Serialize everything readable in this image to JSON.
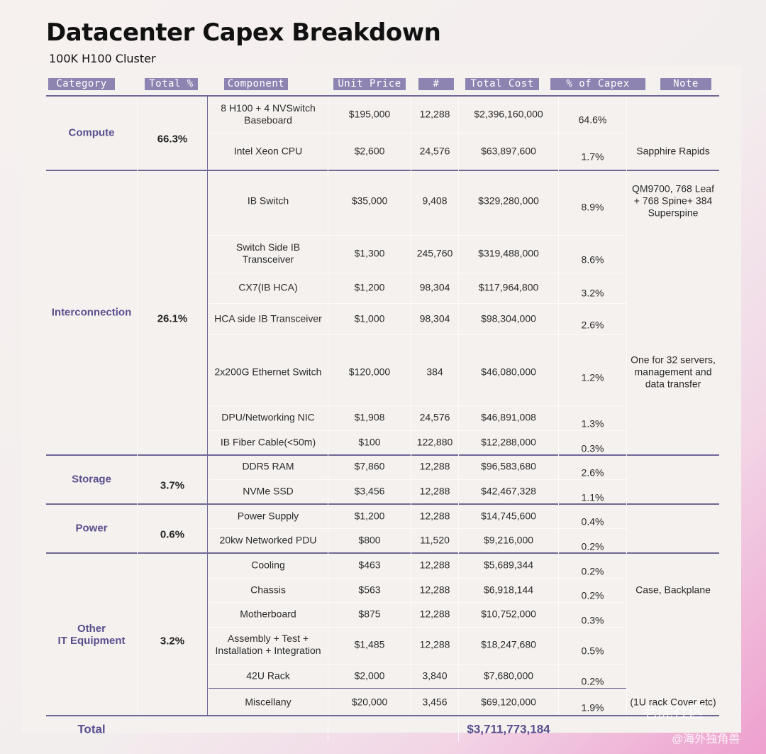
{
  "title": "Datacenter Capex Breakdown",
  "subtitle": "100K H100 Cluster",
  "headers": {
    "category": "Category",
    "total_pct": "Total %",
    "component": "Component",
    "unit_price": "Unit Price",
    "count": "#",
    "total_cost": "Total Cost",
    "pct_capex": "% of Capex",
    "note": "Note"
  },
  "categories": {
    "compute": {
      "name": "Compute",
      "total_pct": "66.3%"
    },
    "interconnection": {
      "name": "Interconnection",
      "total_pct": "26.1%"
    },
    "storage": {
      "name": "Storage",
      "total_pct": "3.7%"
    },
    "power": {
      "name": "Power",
      "total_pct": "0.6%"
    },
    "other": {
      "name": "Other\nIT Equipment",
      "total_pct": "3.2%"
    }
  },
  "rows": [
    {
      "component": "8 H100 + 4 NVSwitch\nBaseboard",
      "unit_price": "$195,000",
      "count": "12,288",
      "total_cost": "$2,396,160,000",
      "pct": "64.6%"
    },
    {
      "component": "Intel Xeon CPU",
      "unit_price": "$2,600",
      "count": "24,576",
      "total_cost": "$63,897,600",
      "pct": "1.7%"
    },
    {
      "component": "IB Switch",
      "unit_price": "$35,000",
      "count": "9,408",
      "total_cost": "$329,280,000",
      "pct": "8.9%"
    },
    {
      "component": "Switch Side IB\nTransceiver",
      "unit_price": "$1,300",
      "count": "245,760",
      "total_cost": "$319,488,000",
      "pct": "8.6%"
    },
    {
      "component": "CX7(IB HCA)",
      "unit_price": "$1,200",
      "count": "98,304",
      "total_cost": "$117,964,800",
      "pct": "3.2%"
    },
    {
      "component": "HCA side IB Transceiver",
      "unit_price": "$1,000",
      "count": "98,304",
      "total_cost": "$98,304,000",
      "pct": "2.6%"
    },
    {
      "component": "2x200G Ethernet Switch",
      "unit_price": "$120,000",
      "count": "384",
      "total_cost": "$46,080,000",
      "pct": "1.2%"
    },
    {
      "component": "DPU/Networking NIC",
      "unit_price": "$1,908",
      "count": "24,576",
      "total_cost": "$46,891,008",
      "pct": "1.3%"
    },
    {
      "component": "IB Fiber Cable(<50m)",
      "unit_price": "$100",
      "count": "122,880",
      "total_cost": "$12,288,000",
      "pct": "0.3%"
    },
    {
      "component": "DDR5 RAM",
      "unit_price": "$7,860",
      "count": "12,288",
      "total_cost": "$96,583,680",
      "pct": "2.6%"
    },
    {
      "component": "NVMe SSD",
      "unit_price": "$3,456",
      "count": "12,288",
      "total_cost": "$42,467,328",
      "pct": "1.1%"
    },
    {
      "component": "Power Supply",
      "unit_price": "$1,200",
      "count": "12,288",
      "total_cost": "$14,745,600",
      "pct": "0.4%"
    },
    {
      "component": "20kw Networked PDU",
      "unit_price": "$800",
      "count": "11,520",
      "total_cost": "$9,216,000",
      "pct": "0.2%"
    },
    {
      "component": "Cooling",
      "unit_price": "$463",
      "count": "12,288",
      "total_cost": "$5,689,344",
      "pct": "0.2%"
    },
    {
      "component": "Chassis",
      "unit_price": "$563",
      "count": "12,288",
      "total_cost": "$6,918,144",
      "pct": "0.2%"
    },
    {
      "component": "Motherboard",
      "unit_price": "$875",
      "count": "12,288",
      "total_cost": "$10,752,000",
      "pct": "0.3%"
    },
    {
      "component": "Assembly + Test +\nInstallation + Integration",
      "unit_price": "$1,485",
      "count": "12,288",
      "total_cost": "$18,247,680",
      "pct": "0.5%"
    },
    {
      "component": "42U Rack",
      "unit_price": "$2,000",
      "count": "3,840",
      "total_cost": "$7,680,000",
      "pct": "0.2%"
    },
    {
      "component": "Miscellany",
      "unit_price": "$20,000",
      "count": "3,456",
      "total_cost": "$69,120,000",
      "pct": "1.9%"
    }
  ],
  "notes": [
    "Sapphire Rapids",
    "QM9700, 768 Leaf\n+ 768 Spine+ 384\nSuperspine",
    "One for 32 servers,\nmanagement and\ndata transfer",
    "Case, Backplane",
    "(1U rack Cover etc)"
  ],
  "total": {
    "label": "Total",
    "value": "$3,711,773,184"
  },
  "watermark": {
    "line1": "老虎社区",
    "line2": "@海外独角兽"
  }
}
